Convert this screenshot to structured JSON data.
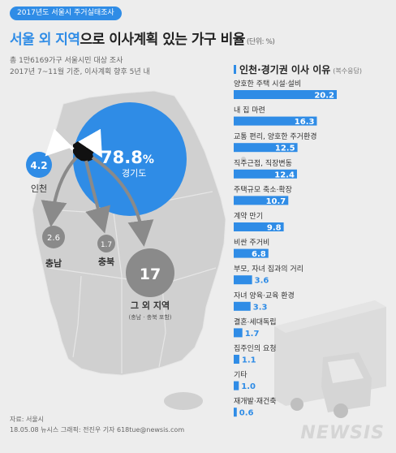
{
  "header": {
    "badge": "2017년도 서울시 주거실태조사",
    "title_pre": "서울 외 지역",
    "title_mid": "으로 이사계획 있는 가구",
    "title_post": " 비율",
    "unit": "(단위: %)",
    "subtitle1": "총 1만6169가구 서울시민 대상 조사",
    "subtitle2": "2017년 7~11월 기준, 이사계획 향후 5년 내"
  },
  "colors": {
    "accent": "#2f8ce6",
    "gray_circle": "#8a8a8a",
    "map": "#d0d0d0",
    "background": "#ededed"
  },
  "map_values": [
    {
      "region": "경기도",
      "value": "78.8",
      "suffix": "%"
    },
    {
      "region": "인천",
      "value": "4.2"
    },
    {
      "region": "충남",
      "value": "2.6"
    },
    {
      "region": "충북",
      "value": "1.7"
    },
    {
      "region": "그 외 지역",
      "value": "17",
      "note": "(충남 · 충북 포함)"
    }
  ],
  "chart_data": {
    "type": "bar",
    "title": "인천·경기권 이사 이유",
    "title_note": "(복수응답)",
    "categories": [
      "양호한 주택 시설·설비",
      "내 집 마련",
      "교통 편리, 양호한 주거환경",
      "직주근접, 직장변동",
      "주택규모 축소·확장",
      "계약 만기",
      "비싼 주거비",
      "부모, 자녀 집과의 거리",
      "자녀 양육·교육 환경",
      "결혼·세대독립",
      "집주인의 요청",
      "기타",
      "재개발·재건축"
    ],
    "values": [
      20.2,
      16.3,
      12.5,
      12.4,
      10.7,
      9.8,
      6.8,
      3.6,
      3.3,
      1.7,
      1.1,
      1.0,
      0.6
    ],
    "labels": [
      "20.2",
      "16.3",
      "12.5",
      "12.4",
      "10.7",
      "9.8",
      "6.8",
      "3.6",
      "3.3",
      "1.7",
      "1.1",
      "1.0",
      "0.6"
    ]
  },
  "footer": {
    "source": "자료: 서울시",
    "credit": "18.05.08 뉴시스 그래픽: 전진우 기자 618tue@newsis.com"
  },
  "logo": "NEWSIS"
}
